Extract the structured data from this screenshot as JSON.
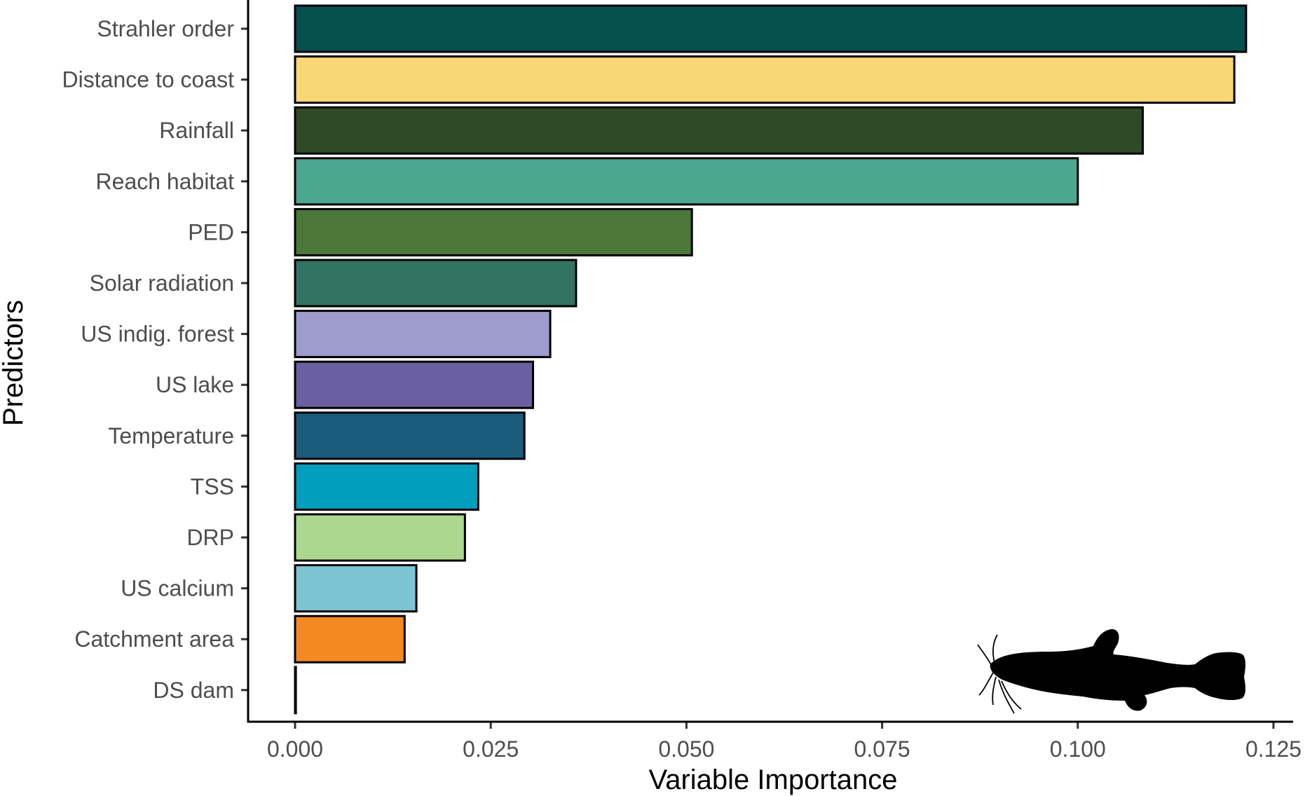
{
  "chart_data": {
    "type": "bar",
    "orientation": "horizontal",
    "xlabel": "Variable Importance",
    "ylabel": "Predictors",
    "xlim": [
      -0.015,
      0.1275
    ],
    "xticks": [
      0.0,
      0.025,
      0.05,
      0.075,
      0.1,
      0.125
    ],
    "xtick_labels": [
      "0.000",
      "0.025",
      "0.050",
      "0.075",
      "0.100",
      "0.125"
    ],
    "grid": false,
    "legend": "none",
    "bar_outline_color": "#000000",
    "categories": [
      "Strahler order",
      "Distance to coast",
      "Rainfall",
      "Reach habitat",
      "PED",
      "Solar radiation",
      "US indig. forest",
      "US lake",
      "Temperature",
      "TSS",
      "DRP",
      "US calcium",
      "Catchment area",
      "DS dam"
    ],
    "values": [
      0.1215,
      0.12,
      0.1083,
      0.1,
      0.0507,
      0.0359,
      0.0326,
      0.0304,
      0.0293,
      0.0234,
      0.0217,
      0.0155,
      0.014,
      0.0001
    ],
    "colors": [
      "#04504f",
      "#fad776",
      "#2f4a26",
      "#4ca791",
      "#4b7838",
      "#317461",
      "#9e9bcf",
      "#6a5fa0",
      "#1a5b7b",
      "#029ebe",
      "#acd78f",
      "#7dc4d3",
      "#f48922",
      "#000000"
    ],
    "annotation_icon": "catfish-silhouette-icon"
  }
}
